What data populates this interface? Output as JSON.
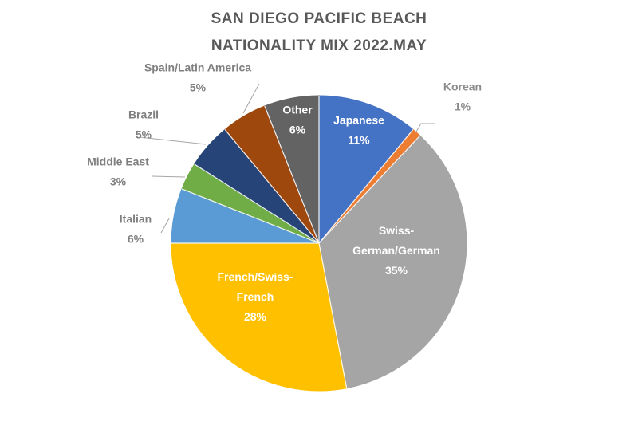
{
  "chart_data": {
    "type": "pie",
    "title_lines": [
      "SAN DIEGO PACIFIC BEACH",
      "NATIONALITY MIX 2022.MAY"
    ],
    "slices": [
      {
        "label_lines": [
          "Japanese"
        ],
        "pct_label": "11%",
        "value": 11,
        "color": "#4472C4"
      },
      {
        "label_lines": [
          "Korean"
        ],
        "pct_label": "1%",
        "value": 1,
        "color": "#ED7D31"
      },
      {
        "label_lines": [
          "Swiss-",
          "German/German"
        ],
        "pct_label": "35%",
        "value": 35,
        "color": "#A5A5A5"
      },
      {
        "label_lines": [
          "French/Swiss-",
          "French"
        ],
        "pct_label": "28%",
        "value": 28,
        "color": "#FFC000"
      },
      {
        "label_lines": [
          "Italian"
        ],
        "pct_label": "6%",
        "value": 6,
        "color": "#5B9BD5"
      },
      {
        "label_lines": [
          "Middle East"
        ],
        "pct_label": "3%",
        "value": 3,
        "color": "#70AD47"
      },
      {
        "label_lines": [
          "Brazil"
        ],
        "pct_label": "5%",
        "value": 5,
        "color": "#264478"
      },
      {
        "label_lines": [
          "Spain/Latin America"
        ],
        "pct_label": "5%",
        "value": 5,
        "color": "#9E480E"
      },
      {
        "label_lines": [
          "Other"
        ],
        "pct_label": "6%",
        "value": 6,
        "color": "#636363"
      }
    ]
  }
}
